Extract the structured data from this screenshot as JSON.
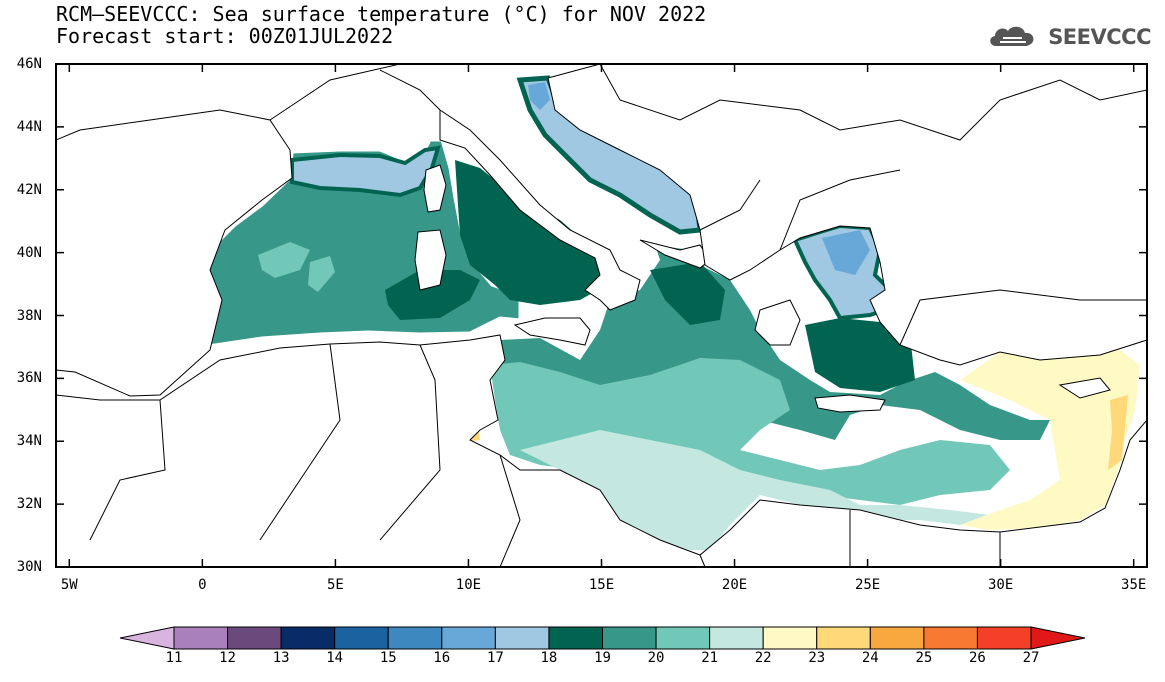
{
  "title": {
    "line1": "RCM—SEEVCCC: Sea surface temperature (°C) for NOV 2022",
    "line2": "Forecast start: 00Z01JUL2022"
  },
  "logo": {
    "icon": "cloud-icon",
    "text": "SEEVCCC"
  },
  "map": {
    "lon_range": [
      -5.5,
      35.5
    ],
    "lat_range": [
      30,
      46
    ],
    "lat_ticks": [
      "30N",
      "32N",
      "34N",
      "36N",
      "38N",
      "40N",
      "42N",
      "44N",
      "46N"
    ],
    "lon_ticks": [
      "5W",
      "0",
      "5E",
      "10E",
      "15E",
      "20E",
      "25E",
      "30E",
      "35E"
    ],
    "land_color": "#ffffff",
    "border_color": "#000000"
  },
  "colorbar": {
    "labels": [
      "11",
      "12",
      "13",
      "14",
      "15",
      "16",
      "17",
      "18",
      "19",
      "20",
      "21",
      "22",
      "23",
      "24",
      "25",
      "26",
      "27"
    ],
    "colors": [
      "#d8b4de",
      "#aa80bc",
      "#6a4a7c",
      "#082c68",
      "#1a62a0",
      "#3e88c0",
      "#68a8d8",
      "#a0c8e2",
      "#006450",
      "#37988a",
      "#72c8b8",
      "#c4e8e0",
      "#fffac4",
      "#ffd87a",
      "#f9a840",
      "#f77830",
      "#f44026",
      "#e01818"
    ]
  }
}
